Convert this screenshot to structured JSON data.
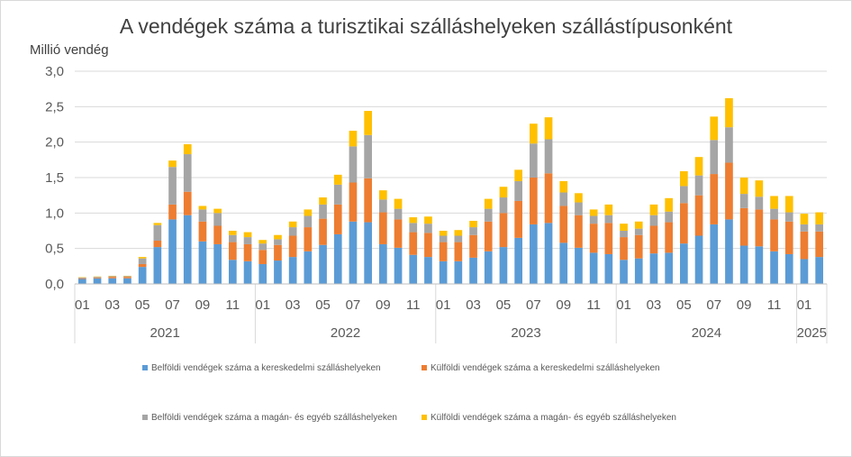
{
  "chart_data": {
    "type": "bar",
    "stacked": true,
    "title": "A vendégek száma a turisztikai szálláshelyeken szállástípusonként",
    "ylabel": "Millió vendég",
    "xlabel": "",
    "ylim": [
      0,
      3.0
    ],
    "yticks": [
      "0,0",
      "0,5",
      "1,0",
      "1,5",
      "2,0",
      "2,5",
      "3,0"
    ],
    "grid": true,
    "legend_position": "bottom",
    "categories": [
      "01",
      "02",
      "03",
      "04",
      "05",
      "06",
      "07",
      "08",
      "09",
      "10",
      "11",
      "12",
      "01",
      "02",
      "03",
      "04",
      "05",
      "06",
      "07",
      "08",
      "09",
      "10",
      "11",
      "12",
      "01",
      "02",
      "03",
      "04",
      "05",
      "06",
      "07",
      "08",
      "09",
      "10",
      "11",
      "12",
      "01",
      "02",
      "03",
      "04",
      "05",
      "06",
      "07",
      "08",
      "09",
      "10",
      "11",
      "12",
      "01",
      "02"
    ],
    "tick_labels": [
      "01",
      "",
      "03",
      "",
      "05",
      "",
      "07",
      "",
      "09",
      "",
      "11",
      "",
      "01",
      "",
      "03",
      "",
      "05",
      "",
      "07",
      "",
      "09",
      "",
      "11",
      "",
      "01",
      "",
      "03",
      "",
      "05",
      "",
      "07",
      "",
      "09",
      "",
      "11",
      "",
      "01",
      "",
      "03",
      "",
      "05",
      "",
      "07",
      "",
      "09",
      "",
      "11",
      "",
      "01",
      ""
    ],
    "years": [
      {
        "label": "2021",
        "start": 0,
        "count": 12
      },
      {
        "label": "2022",
        "start": 12,
        "count": 12
      },
      {
        "label": "2023",
        "start": 24,
        "count": 12
      },
      {
        "label": "2024",
        "start": 36,
        "count": 12
      },
      {
        "label": "2025",
        "start": 48,
        "count": 2
      }
    ],
    "series": [
      {
        "name": "Belföldi vendégek száma a kereskedelmi szálláshelyeken",
        "color": "#5b9bd5",
        "values": [
          0.07,
          0.08,
          0.08,
          0.08,
          0.24,
          0.52,
          0.91,
          0.97,
          0.6,
          0.56,
          0.34,
          0.32,
          0.28,
          0.33,
          0.38,
          0.46,
          0.55,
          0.7,
          0.88,
          0.87,
          0.56,
          0.51,
          0.41,
          0.38,
          0.32,
          0.32,
          0.37,
          0.46,
          0.52,
          0.65,
          0.84,
          0.86,
          0.58,
          0.51,
          0.44,
          0.42,
          0.34,
          0.36,
          0.43,
          0.44,
          0.57,
          0.68,
          0.84,
          0.91,
          0.54,
          0.53,
          0.46,
          0.42,
          0.35,
          0.38
        ]
      },
      {
        "name": "Külföldi vendégek száma a kereskedelmi szálláshelyeken",
        "color": "#ed7d31",
        "values": [
          0.01,
          0.01,
          0.02,
          0.02,
          0.04,
          0.09,
          0.21,
          0.33,
          0.28,
          0.26,
          0.25,
          0.24,
          0.2,
          0.22,
          0.3,
          0.34,
          0.37,
          0.42,
          0.55,
          0.62,
          0.45,
          0.4,
          0.32,
          0.34,
          0.27,
          0.27,
          0.32,
          0.42,
          0.48,
          0.52,
          0.66,
          0.7,
          0.52,
          0.46,
          0.41,
          0.44,
          0.32,
          0.33,
          0.39,
          0.43,
          0.57,
          0.57,
          0.71,
          0.8,
          0.53,
          0.52,
          0.45,
          0.46,
          0.39,
          0.36
        ]
      },
      {
        "name": "Belföldi vendégek száma a magán- és egyéb szálláshelyeken",
        "color": "#a5a5a5",
        "values": [
          0.01,
          0.01,
          0.01,
          0.01,
          0.08,
          0.22,
          0.53,
          0.53,
          0.17,
          0.18,
          0.1,
          0.1,
          0.09,
          0.08,
          0.12,
          0.16,
          0.2,
          0.28,
          0.51,
          0.61,
          0.18,
          0.15,
          0.13,
          0.13,
          0.09,
          0.09,
          0.11,
          0.18,
          0.22,
          0.28,
          0.48,
          0.48,
          0.19,
          0.18,
          0.11,
          0.11,
          0.09,
          0.09,
          0.15,
          0.15,
          0.24,
          0.28,
          0.48,
          0.5,
          0.2,
          0.18,
          0.15,
          0.13,
          0.1,
          0.1
        ]
      },
      {
        "name": "Külföldi vendégek száma a magán- és egyéb szálláshelyeken",
        "color": "#ffc000",
        "values": [
          0.005,
          0.005,
          0.005,
          0.005,
          0.02,
          0.03,
          0.09,
          0.14,
          0.05,
          0.06,
          0.06,
          0.07,
          0.05,
          0.06,
          0.08,
          0.09,
          0.1,
          0.14,
          0.22,
          0.34,
          0.13,
          0.14,
          0.08,
          0.1,
          0.07,
          0.08,
          0.09,
          0.14,
          0.15,
          0.16,
          0.28,
          0.31,
          0.16,
          0.13,
          0.09,
          0.15,
          0.1,
          0.1,
          0.15,
          0.19,
          0.21,
          0.26,
          0.33,
          0.41,
          0.23,
          0.23,
          0.18,
          0.23,
          0.15,
          0.17
        ]
      }
    ]
  }
}
